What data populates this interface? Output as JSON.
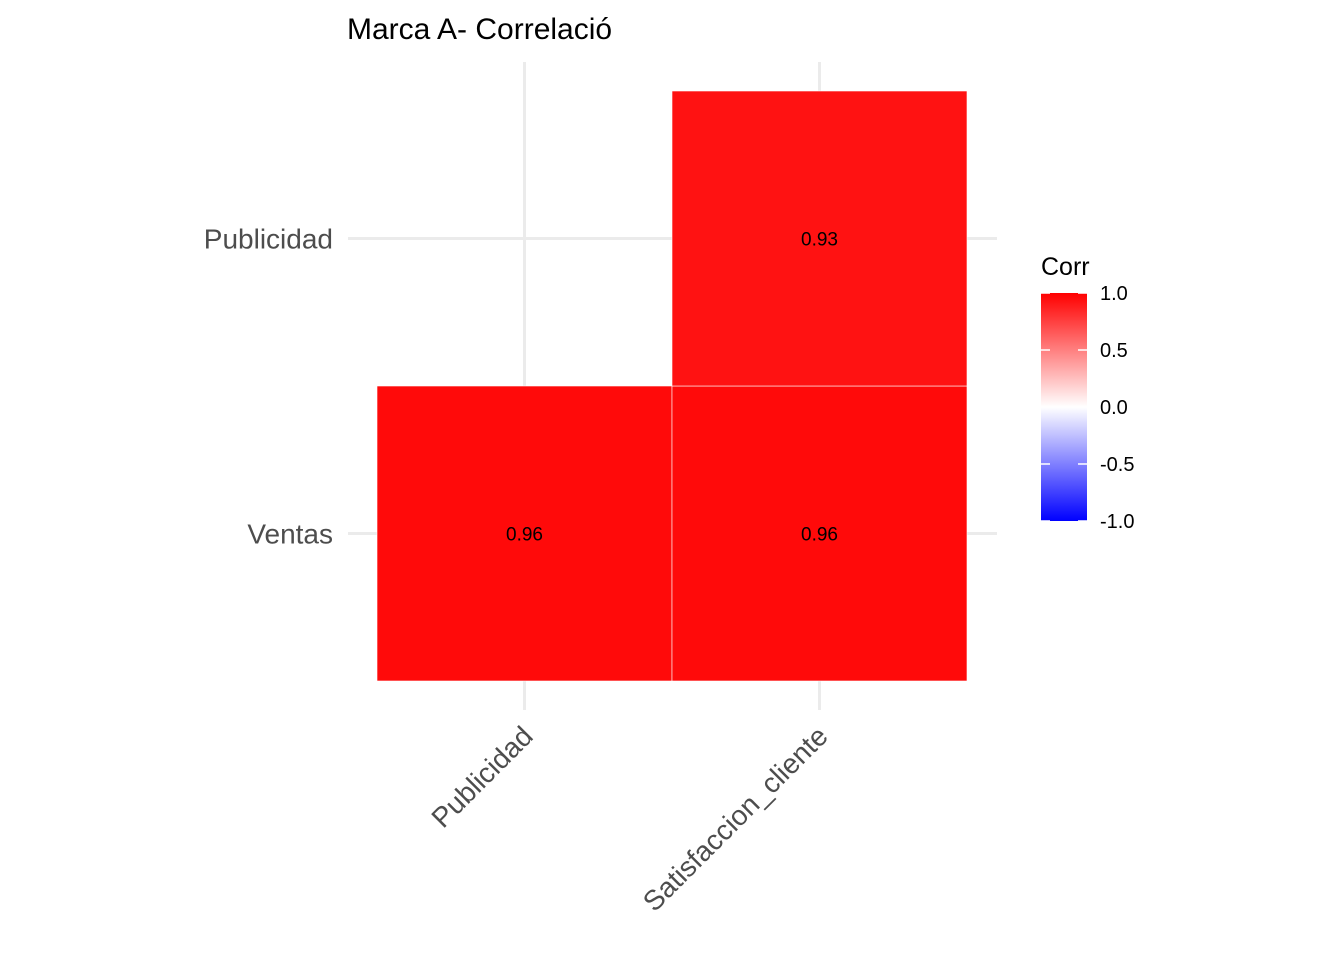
{
  "chart_data": {
    "type": "heatmap",
    "title": "Marca A- Correlació",
    "x_categories": [
      "Publicidad",
      "Satisfaccion_cliente"
    ],
    "y_categories": [
      "Ventas",
      "Publicidad"
    ],
    "cells": [
      {
        "x": "Publicidad",
        "y": "Ventas",
        "value": 0.96,
        "label": "0.96"
      },
      {
        "x": "Satisfaccion_cliente",
        "y": "Ventas",
        "value": 0.96,
        "label": "0.96"
      },
      {
        "x": "Satisfaccion_cliente",
        "y": "Publicidad",
        "value": 0.93,
        "label": "0.93"
      }
    ],
    "legend": {
      "title": "Corr",
      "position": "right",
      "range": [
        -1,
        1
      ],
      "ticks": [
        "1.0",
        "0.5",
        "0.0",
        "-0.5",
        "-1.0"
      ],
      "tick_values": [
        1,
        0.5,
        0,
        -0.5,
        -1
      ],
      "colors": {
        "low": "#0000ff",
        "mid": "#ffffff",
        "high": "#ff0000"
      }
    },
    "grid": true
  }
}
